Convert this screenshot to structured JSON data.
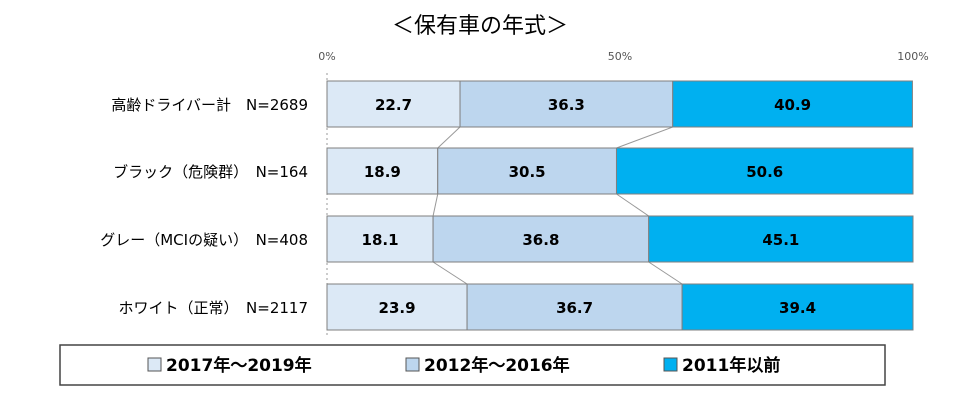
{
  "chart_data": {
    "type": "bar",
    "orientation": "horizontal",
    "stacked": true,
    "percent_stacked": true,
    "title": "＜保有車の年式＞",
    "categories": [
      "高齢ドライバー計　N=2689",
      "ブラック（危険群）　N=164",
      "グレー（MCIの疑い）　N=408",
      "ホワイト（正常）　N=2117"
    ],
    "series": [
      {
        "name": "2017年～2019年",
        "color": "#dce9f6",
        "values": [
          22.7,
          18.9,
          18.1,
          23.9
        ]
      },
      {
        "name": "2012年～2016年",
        "color": "#bdd6ee",
        "values": [
          36.3,
          30.5,
          36.8,
          36.7
        ]
      },
      {
        "name": "2011年以前",
        "color": "#00b0f0",
        "values": [
          40.9,
          50.6,
          45.1,
          39.4
        ]
      }
    ],
    "xlim": [
      0,
      100
    ],
    "xticks": [
      "0%",
      "50%",
      "100%"
    ],
    "grid": false,
    "legend_position": "bottom",
    "series_lines": true
  }
}
